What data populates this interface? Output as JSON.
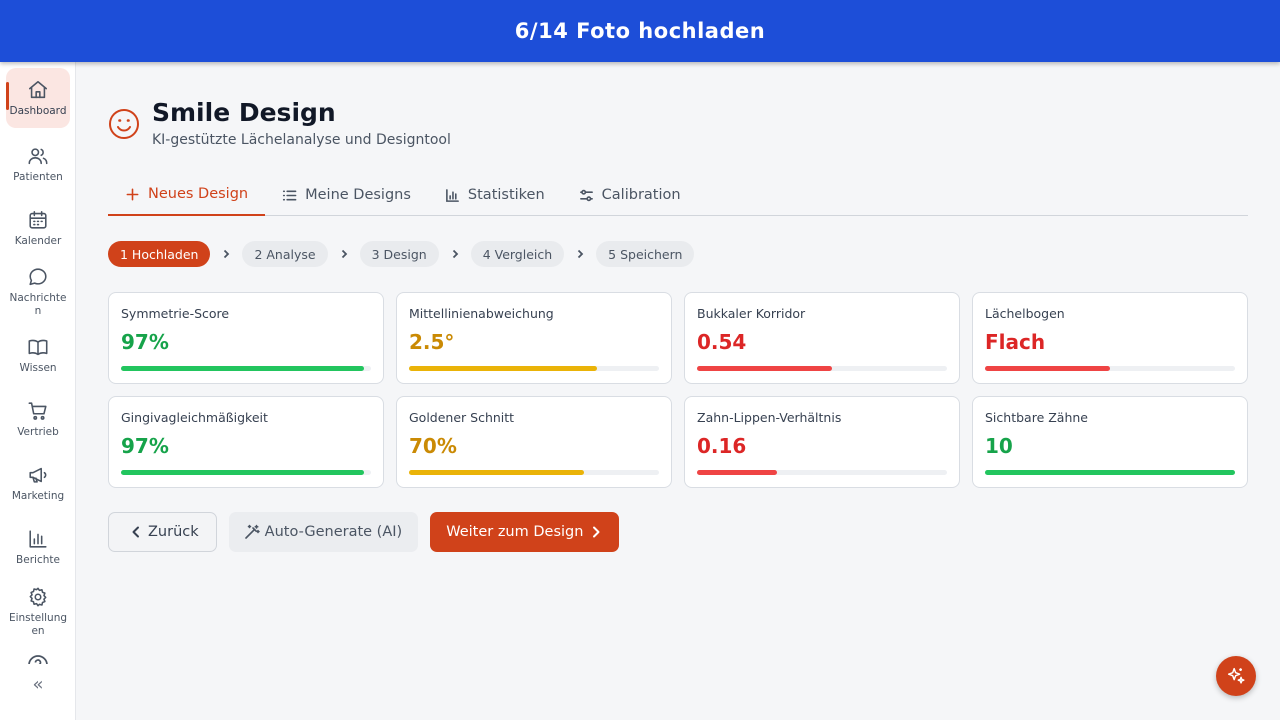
{
  "topbar": {
    "title": "6/14 Foto hochladen"
  },
  "sidebar": {
    "items": [
      {
        "label": "Dashboard",
        "icon": "home-icon",
        "active": true
      },
      {
        "label": "Patienten",
        "icon": "users-icon"
      },
      {
        "label": "Kalender",
        "icon": "calendar-icon"
      },
      {
        "label": "Nachrichten",
        "icon": "message-icon"
      },
      {
        "label": "Wissen",
        "icon": "book-icon"
      },
      {
        "label": "Vertrieb",
        "icon": "cart-icon"
      },
      {
        "label": "Marketing",
        "icon": "megaphone-icon"
      },
      {
        "label": "Berichte",
        "icon": "bar-chart-icon"
      },
      {
        "label": "Einstellungen",
        "icon": "gear-icon"
      }
    ],
    "collapse_label": "«"
  },
  "header": {
    "title": "Smile Design",
    "subtitle": "KI-gestützte Lächelanalyse und Designtool",
    "icon": "smile-icon"
  },
  "tabs": [
    {
      "label": "Neues Design",
      "icon": "plus-icon",
      "active": true
    },
    {
      "label": "Meine Designs",
      "icon": "list-icon"
    },
    {
      "label": "Statistiken",
      "icon": "bar-chart-icon"
    },
    {
      "label": "Calibration",
      "icon": "sliders-icon"
    }
  ],
  "steps": [
    {
      "label": "1 Hochladen",
      "active": true
    },
    {
      "label": "2 Analyse"
    },
    {
      "label": "3 Design"
    },
    {
      "label": "4 Vergleich"
    },
    {
      "label": "5 Speichern"
    }
  ],
  "metrics": [
    {
      "label": "Symmetrie-Score",
      "value": "97%",
      "fraction": 0.97,
      "color": "#22c55e",
      "text_color": "#16a34a"
    },
    {
      "label": "Mittellinienabweichung",
      "value": "2.5°",
      "fraction": 0.75,
      "color": "#eab308",
      "text_color": "#ca8a04"
    },
    {
      "label": "Bukkaler Korridor",
      "value": "0.54",
      "fraction": 0.54,
      "color": "#ef4444",
      "text_color": "#dc2626"
    },
    {
      "label": "Lächelbogen",
      "value": "Flach",
      "fraction": 0.5,
      "color": "#ef4444",
      "text_color": "#dc2626"
    },
    {
      "label": "Gingivagleichmäßigkeit",
      "value": "97%",
      "fraction": 0.97,
      "color": "#22c55e",
      "text_color": "#16a34a"
    },
    {
      "label": "Goldener Schnitt",
      "value": "70%",
      "fraction": 0.7,
      "color": "#eab308",
      "text_color": "#ca8a04"
    },
    {
      "label": "Zahn-Lippen-Verhältnis",
      "value": "0.16",
      "fraction": 0.32,
      "color": "#ef4444",
      "text_color": "#dc2626"
    },
    {
      "label": "Sichtbare Zähne",
      "value": "10",
      "fraction": 1.0,
      "color": "#22c55e",
      "text_color": "#16a34a"
    }
  ],
  "actions": {
    "back_label": "Zurück",
    "auto_label": "Auto-Generate (AI)",
    "next_label": "Weiter zum Design"
  },
  "fab": {
    "icon": "sparkles-icon"
  },
  "colors": {
    "brand": "#1d4ed8",
    "accent": "#d0421a"
  }
}
